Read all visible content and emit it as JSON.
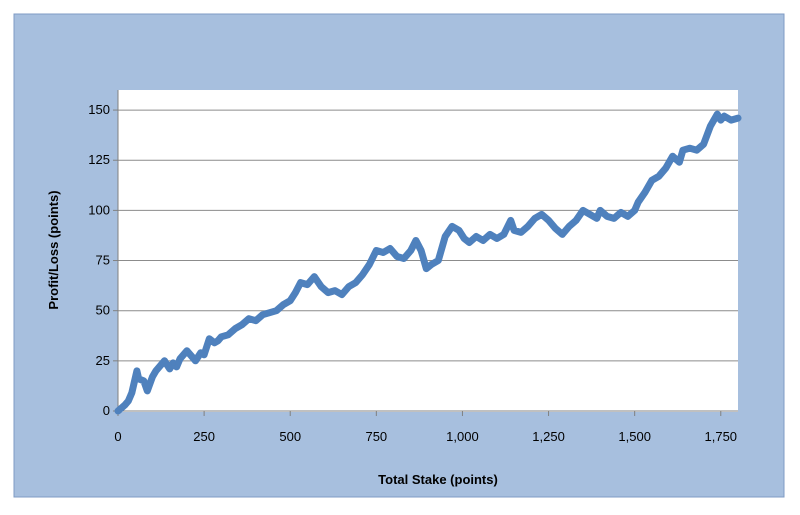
{
  "chart_data": {
    "type": "line",
    "title": "",
    "xlabel": "Total Stake (points)",
    "ylabel": "Profit/Loss (points)",
    "xlim": [
      0,
      1800
    ],
    "ylim": [
      0,
      160
    ],
    "x_ticks": [
      0,
      250,
      500,
      750,
      1000,
      1250,
      1500,
      1750
    ],
    "x_tick_labels": [
      "0",
      "250",
      "500",
      "750",
      "1,000",
      "1,250",
      "1,500",
      "1,750"
    ],
    "y_ticks": [
      0,
      25,
      50,
      75,
      100,
      125,
      150
    ],
    "y_tick_labels": [
      "0",
      "25",
      "50",
      "75",
      "100",
      "125",
      "150"
    ],
    "grid": "horizontal major gridlines",
    "legend": "none",
    "series": [
      {
        "x": [
          0,
          20,
          30,
          40,
          55,
          60,
          75,
          85,
          100,
          110,
          120,
          135,
          150,
          160,
          170,
          180,
          200,
          215,
          225,
          240,
          250,
          265,
          280,
          290,
          300,
          320,
          340,
          360,
          380,
          400,
          420,
          440,
          460,
          480,
          500,
          515,
          530,
          550,
          570,
          590,
          610,
          630,
          650,
          670,
          690,
          710,
          730,
          750,
          770,
          790,
          810,
          830,
          850,
          865,
          880,
          895,
          910,
          930,
          950,
          970,
          990,
          1005,
          1020,
          1040,
          1060,
          1080,
          1100,
          1120,
          1140,
          1150,
          1170,
          1190,
          1210,
          1230,
          1250,
          1270,
          1290,
          1310,
          1330,
          1350,
          1370,
          1390,
          1400,
          1420,
          1440,
          1460,
          1480,
          1500,
          1510,
          1530,
          1550,
          1570,
          1590,
          1610,
          1630,
          1640,
          1660,
          1680,
          1700,
          1720,
          1740,
          1750,
          1760,
          1780,
          1800
        ],
        "values": [
          0,
          3,
          5,
          9,
          20,
          16,
          15,
          10,
          17,
          20,
          22,
          25,
          21,
          24,
          22,
          26,
          30,
          27,
          25,
          29,
          28,
          36,
          34,
          35,
          37,
          38,
          41,
          43,
          46,
          45,
          48,
          49,
          50,
          53,
          55,
          59,
          64,
          63,
          67,
          62,
          59,
          60,
          58,
          62,
          64,
          68,
          73,
          80,
          79,
          81,
          77,
          76,
          80,
          85,
          80,
          71,
          73,
          75,
          87,
          92,
          90,
          86,
          84,
          87,
          85,
          88,
          86,
          88,
          95,
          90,
          89,
          92,
          96,
          98,
          95,
          91,
          88,
          92,
          95,
          100,
          98,
          96,
          100,
          97,
          96,
          99,
          97,
          100,
          104,
          109,
          115,
          117,
          121,
          127,
          124,
          130,
          131,
          130,
          133,
          142,
          148,
          145,
          147,
          145,
          146
        ]
      }
    ],
    "colors": {
      "line": "#4f81bd",
      "outer_background": "#a7bfde",
      "plot_background": "#ffffff",
      "gridline": "#8c8c8c"
    }
  }
}
